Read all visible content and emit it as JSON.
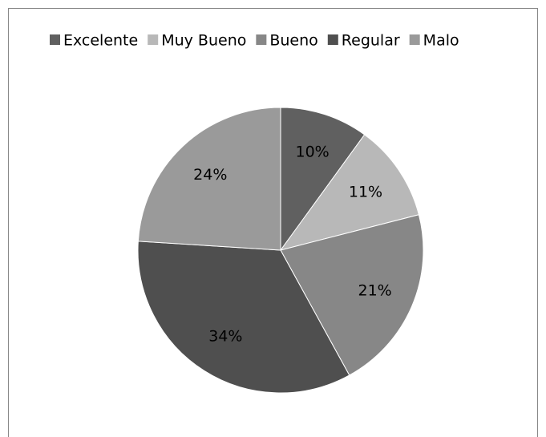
{
  "chart_data": {
    "type": "pie",
    "categories": [
      "Excelente",
      "Muy Bueno",
      "Bueno",
      "Regular",
      "Malo"
    ],
    "values": [
      10,
      11,
      21,
      34,
      24
    ],
    "value_labels": [
      "10%",
      "11%",
      "21%",
      "34%",
      "24%"
    ],
    "colors": [
      "#606060",
      "#b8b8b8",
      "#878787",
      "#4f4f4f",
      "#9a9a9a"
    ],
    "legend": "top"
  }
}
